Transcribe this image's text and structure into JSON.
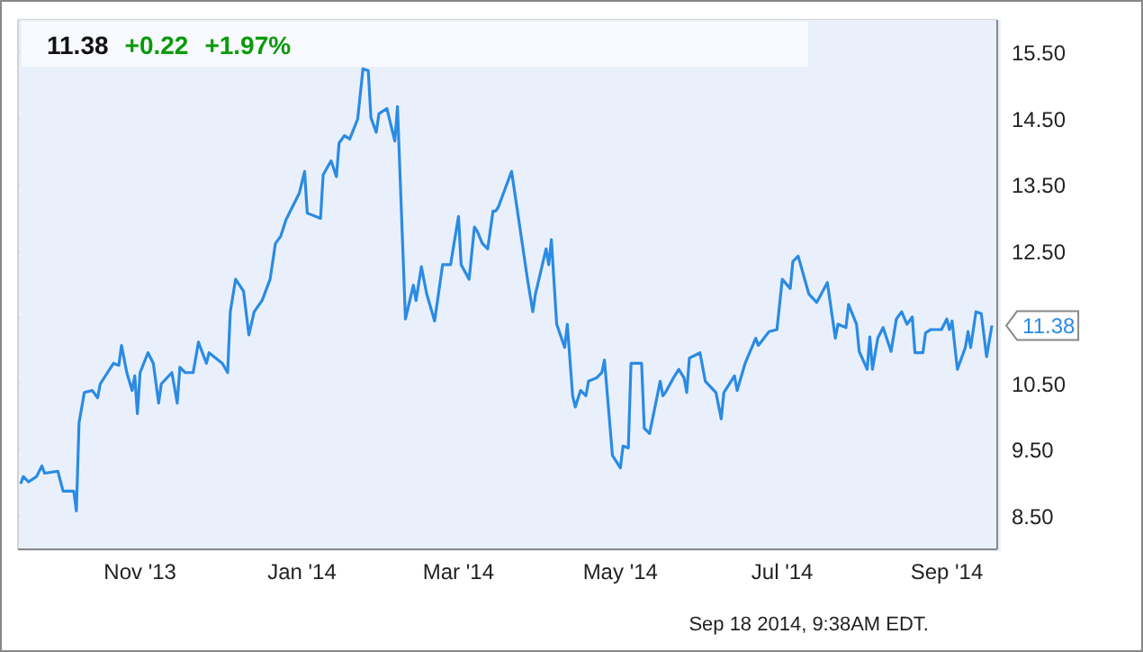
{
  "chart_data": {
    "type": "line",
    "title": "11.38",
    "annotations": [
      "+0.22",
      "+1.97%",
      {
        "text": "11.38",
        "x": "2014-09-18",
        "y": 11.38
      },
      "Sep 18 2014, 9:38AM EDT."
    ],
    "x": [
      "2013-09-17",
      "2013-09-18",
      "2013-09-20",
      "2013-09-23",
      "2013-09-25",
      "2013-09-26",
      "2013-10-01",
      "2013-10-03",
      "2013-10-07",
      "2013-10-08",
      "2013-10-09",
      "2013-10-11",
      "2013-10-14",
      "2013-10-16",
      "2013-10-17",
      "2013-10-22",
      "2013-10-24",
      "2013-10-25",
      "2013-10-27",
      "2013-10-29",
      "2013-10-30",
      "2013-10-31",
      "2013-11-01",
      "2013-11-04",
      "2013-11-06",
      "2013-11-08",
      "2013-11-09",
      "2013-11-13",
      "2013-11-15",
      "2013-11-16",
      "2013-11-18",
      "2013-11-21",
      "2013-11-23",
      "2013-11-26",
      "2013-11-27",
      "2013-12-02",
      "2013-12-04",
      "2013-12-05",
      "2013-12-07",
      "2013-12-10",
      "2013-12-12",
      "2013-12-14",
      "2013-12-17",
      "2013-12-20",
      "2013-12-22",
      "2013-12-24",
      "2013-12-26",
      "2013-12-29",
      "2013-12-31",
      "2014-01-02",
      "2014-01-03",
      "2014-01-08",
      "2014-01-09",
      "2014-01-12",
      "2014-01-14",
      "2014-01-15",
      "2014-01-17",
      "2014-01-19",
      "2014-01-22",
      "2014-01-24",
      "2014-01-26",
      "2014-01-27",
      "2014-01-29",
      "2014-01-30",
      "2014-02-02",
      "2014-02-05",
      "2014-02-06",
      "2014-02-09",
      "2014-02-12",
      "2014-02-13",
      "2014-02-15",
      "2014-02-17",
      "2014-02-20",
      "2014-02-23",
      "2014-02-26",
      "2014-03-01",
      "2014-03-02",
      "2014-03-05",
      "2014-03-07",
      "2014-03-08",
      "2014-03-10",
      "2014-03-12",
      "2014-03-14",
      "2014-03-15",
      "2014-03-16",
      "2014-03-21",
      "2014-03-23",
      "2014-03-27",
      "2014-03-29",
      "2014-03-30",
      "2014-04-03",
      "2014-04-04",
      "2014-04-05",
      "2014-04-07",
      "2014-04-10",
      "2014-04-11",
      "2014-04-13",
      "2014-04-14",
      "2014-04-16",
      "2014-04-18",
      "2014-04-19",
      "2014-04-22",
      "2014-04-24",
      "2014-04-25",
      "2014-04-28",
      "2014-05-01",
      "2014-05-02",
      "2014-05-04",
      "2014-05-05",
      "2014-05-09",
      "2014-05-10",
      "2014-05-12",
      "2014-05-16",
      "2014-05-17",
      "2014-05-18",
      "2014-05-21",
      "2014-05-23",
      "2014-05-25",
      "2014-05-26",
      "2014-05-27",
      "2014-05-31",
      "2014-06-02",
      "2014-06-06",
      "2014-06-08",
      "2014-06-09",
      "2014-06-13",
      "2014-06-14",
      "2014-06-17",
      "2014-06-21",
      "2014-06-22",
      "2014-06-26",
      "2014-06-29",
      "2014-07-01",
      "2014-07-04",
      "2014-07-05",
      "2014-07-07",
      "2014-07-11",
      "2014-07-14",
      "2014-07-18",
      "2014-07-21",
      "2014-07-22",
      "2014-07-25",
      "2014-07-26",
      "2014-07-29",
      "2014-07-30",
      "2014-08-02",
      "2014-08-03",
      "2014-08-04",
      "2014-08-06",
      "2014-08-08",
      "2014-08-11",
      "2014-08-13",
      "2014-08-15",
      "2014-08-17",
      "2014-08-19",
      "2014-08-20",
      "2014-08-23",
      "2014-08-24",
      "2014-08-26",
      "2014-08-30",
      "2014-09-01",
      "2014-09-02",
      "2014-09-03",
      "2014-09-04",
      "2014-09-05",
      "2014-09-08",
      "2014-09-09",
      "2014-09-10",
      "2014-09-12",
      "2014-09-14",
      "2014-09-16",
      "2014-09-18"
    ],
    "series": [
      {
        "color": "#2a8be4",
        "values": [
          8.99,
          9.1,
          9.02,
          9.1,
          9.26,
          9.15,
          9.18,
          8.88,
          8.88,
          8.58,
          9.91,
          10.37,
          10.4,
          10.29,
          10.5,
          10.81,
          10.78,
          11.08,
          10.67,
          10.4,
          10.62,
          10.05,
          10.67,
          10.97,
          10.81,
          10.21,
          10.5,
          10.67,
          10.21,
          10.75,
          10.67,
          10.67,
          11.13,
          10.81,
          10.97,
          10.81,
          10.67,
          11.59,
          12.08,
          11.9,
          11.24,
          11.59,
          11.76,
          12.08,
          12.62,
          12.73,
          12.98,
          13.22,
          13.38,
          13.71,
          13.08,
          13.0,
          13.66,
          13.87,
          13.63,
          14.14,
          14.25,
          14.2,
          14.5,
          15.26,
          15.23,
          14.52,
          14.3,
          14.58,
          14.66,
          14.17,
          14.69,
          11.48,
          11.99,
          11.76,
          12.27,
          11.86,
          11.45,
          12.3,
          12.3,
          13.03,
          12.3,
          12.08,
          12.87,
          12.81,
          12.62,
          12.54,
          13.11,
          13.11,
          13.17,
          13.71,
          13.17,
          12.08,
          11.59,
          11.86,
          12.54,
          12.3,
          12.68,
          11.4,
          11.05,
          11.4,
          10.32,
          10.15,
          10.4,
          10.32,
          10.54,
          10.59,
          10.67,
          10.86,
          9.42,
          9.23,
          9.56,
          9.53,
          10.81,
          10.81,
          9.83,
          9.75,
          10.54,
          10.32,
          10.37,
          10.59,
          10.72,
          10.59,
          10.37,
          10.89,
          10.97,
          10.54,
          10.37,
          9.97,
          10.37,
          10.62,
          10.4,
          10.81,
          11.19,
          11.08,
          11.29,
          11.32,
          12.08,
          11.94,
          12.35,
          12.43,
          11.86,
          11.73,
          12.03,
          11.19,
          11.4,
          11.35,
          11.7,
          11.4,
          10.99,
          10.72,
          11.21,
          10.72,
          11.19,
          11.35,
          10.99,
          11.48,
          11.59,
          11.4,
          11.51,
          10.97,
          10.97,
          11.27,
          11.32,
          11.32,
          11.48,
          11.32,
          11.45,
          11.08,
          10.72,
          11.05,
          11.29,
          11.05,
          11.59,
          11.56,
          10.91,
          11.38
        ]
      }
    ],
    "xlim": [
      "2013-09-16",
      "2014-09-20"
    ],
    "xticks": [
      {
        "value": "2013-11-01",
        "label": "Nov '13"
      },
      {
        "value": "2014-01-01",
        "label": "Jan '14"
      },
      {
        "value": "2014-03-01",
        "label": "Mar '14"
      },
      {
        "value": "2014-05-01",
        "label": "May '14"
      },
      {
        "value": "2014-07-01",
        "label": "Jul '14"
      },
      {
        "value": "2014-09-01",
        "label": "Sep '14"
      }
    ],
    "ylim": [
      8,
      16
    ],
    "yticks": [
      {
        "value": 8.5,
        "label": "8.50"
      },
      {
        "value": 9.5,
        "label": "9.50"
      },
      {
        "value": 10.5,
        "label": "10.50"
      },
      {
        "value": 11.5,
        "label": null
      },
      {
        "value": 12.5,
        "label": "12.50"
      },
      {
        "value": 13.5,
        "label": "13.50"
      },
      {
        "value": 14.5,
        "label": "14.50"
      },
      {
        "value": 15.5,
        "label": "15.50"
      }
    ],
    "grid": true,
    "marker": "none",
    "line_style": "solid"
  }
}
